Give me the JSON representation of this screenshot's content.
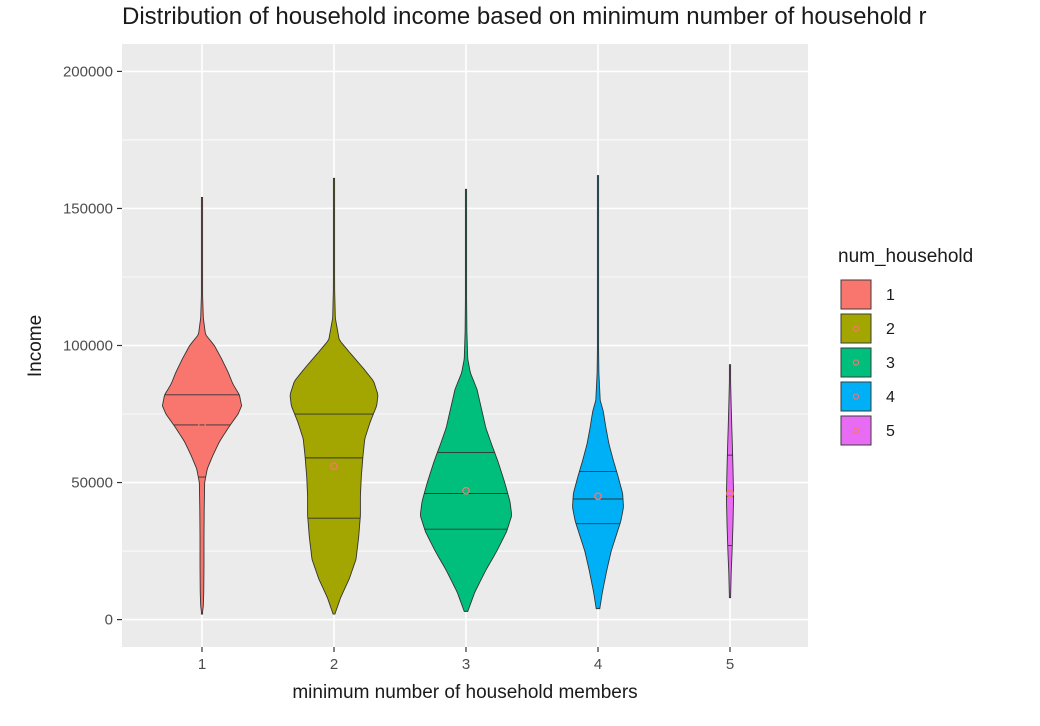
{
  "chart_data": {
    "type": "violin",
    "title": "Distribution of household income based on minimum number of household r",
    "xlabel": "minimum number of household members",
    "ylabel": "Income",
    "categories": [
      "1",
      "2",
      "3",
      "4",
      "5"
    ],
    "ylim": [
      -10000,
      210000
    ],
    "yticks": [
      0,
      50000,
      100000,
      150000,
      200000
    ],
    "yticklabels": [
      "0",
      "50000",
      "100000",
      "150000",
      "200000"
    ],
    "grid": true,
    "legend": {
      "title": "num_household",
      "position": "right",
      "entries": [
        "1",
        "2",
        "3",
        "4",
        "5"
      ]
    },
    "colors": {
      "panel_bg": "#ebebeb",
      "grid": "#ffffff",
      "outline": "#333333",
      "mean_marker": "#f8766d"
    },
    "series": [
      {
        "name": "1",
        "color": "#f8766d",
        "min": 2000,
        "max": 154000,
        "quantiles": [
          52000,
          71000,
          82000
        ],
        "mean": 71000,
        "profile": [
          [
            2000,
            0.005
          ],
          [
            5000,
            0.03
          ],
          [
            10000,
            0.04
          ],
          [
            20000,
            0.045
          ],
          [
            30000,
            0.045
          ],
          [
            40000,
            0.05
          ],
          [
            50000,
            0.06
          ],
          [
            55000,
            0.12
          ],
          [
            60000,
            0.25
          ],
          [
            65000,
            0.4
          ],
          [
            70000,
            0.6
          ],
          [
            75000,
            0.82
          ],
          [
            78000,
            0.9
          ],
          [
            82000,
            0.85
          ],
          [
            86000,
            0.7
          ],
          [
            90000,
            0.6
          ],
          [
            95000,
            0.45
          ],
          [
            100000,
            0.28
          ],
          [
            104000,
            0.08
          ],
          [
            110000,
            0.03
          ],
          [
            120000,
            0.01
          ],
          [
            154000,
            0.005
          ]
        ]
      },
      {
        "name": "2",
        "color": "#a3a500",
        "min": 2000,
        "max": 161000,
        "quantiles": [
          37000,
          59000,
          75000
        ],
        "mean": 56000,
        "profile": [
          [
            2000,
            0.02
          ],
          [
            8000,
            0.15
          ],
          [
            15000,
            0.35
          ],
          [
            22000,
            0.5
          ],
          [
            30000,
            0.56
          ],
          [
            38000,
            0.6
          ],
          [
            45000,
            0.6
          ],
          [
            52000,
            0.62
          ],
          [
            60000,
            0.66
          ],
          [
            66000,
            0.7
          ],
          [
            72000,
            0.82
          ],
          [
            78000,
            0.97
          ],
          [
            82000,
            1.0
          ],
          [
            87000,
            0.9
          ],
          [
            92000,
            0.65
          ],
          [
            97000,
            0.38
          ],
          [
            102000,
            0.12
          ],
          [
            110000,
            0.03
          ],
          [
            120000,
            0.015
          ],
          [
            140000,
            0.01
          ],
          [
            161000,
            0.005
          ]
        ]
      },
      {
        "name": "3",
        "color": "#00bf7d",
        "min": 3000,
        "max": 157000,
        "quantiles": [
          33000,
          46000,
          61000
        ],
        "mean": 47000,
        "profile": [
          [
            3000,
            0.04
          ],
          [
            10000,
            0.2
          ],
          [
            18000,
            0.45
          ],
          [
            25000,
            0.7
          ],
          [
            32000,
            0.92
          ],
          [
            38000,
            1.04
          ],
          [
            43000,
            1.0
          ],
          [
            50000,
            0.88
          ],
          [
            58000,
            0.72
          ],
          [
            64000,
            0.58
          ],
          [
            70000,
            0.45
          ],
          [
            77000,
            0.35
          ],
          [
            84000,
            0.25
          ],
          [
            90000,
            0.1
          ],
          [
            95000,
            0.04
          ],
          [
            105000,
            0.02
          ],
          [
            120000,
            0.012
          ],
          [
            157000,
            0.005
          ]
        ]
      },
      {
        "name": "4",
        "color": "#00b0f6",
        "min": 4000,
        "max": 162000,
        "quantiles": [
          35000,
          44000,
          54000
        ],
        "mean": 45000,
        "profile": [
          [
            4000,
            0.04
          ],
          [
            10000,
            0.1
          ],
          [
            18000,
            0.2
          ],
          [
            25000,
            0.3
          ],
          [
            30000,
            0.4
          ],
          [
            36000,
            0.52
          ],
          [
            41000,
            0.58
          ],
          [
            46000,
            0.56
          ],
          [
            52000,
            0.46
          ],
          [
            58000,
            0.35
          ],
          [
            64000,
            0.25
          ],
          [
            70000,
            0.18
          ],
          [
            76000,
            0.12
          ],
          [
            80000,
            0.05
          ],
          [
            90000,
            0.02
          ],
          [
            100000,
            0.012
          ],
          [
            162000,
            0.005
          ]
        ]
      },
      {
        "name": "5",
        "color": "#e76bf3",
        "min": 8000,
        "max": 93000,
        "quantiles": [
          27000,
          45000,
          60000
        ],
        "mean": 46000,
        "profile": [
          [
            8000,
            0.01
          ],
          [
            17000,
            0.02
          ],
          [
            25000,
            0.035
          ],
          [
            35000,
            0.05
          ],
          [
            45000,
            0.06
          ],
          [
            55000,
            0.05
          ],
          [
            63000,
            0.04
          ],
          [
            70000,
            0.03
          ],
          [
            78000,
            0.02
          ],
          [
            85000,
            0.012
          ],
          [
            93000,
            0.005
          ]
        ]
      }
    ]
  }
}
